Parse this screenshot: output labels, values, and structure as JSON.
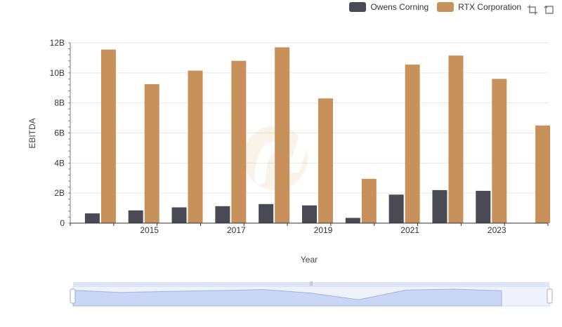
{
  "legend": [
    {
      "name": "Owens Corning",
      "color": "#4a4a55"
    },
    {
      "name": "RTX Corporation",
      "color": "#c8915c"
    }
  ],
  "toolbox": {
    "zoom_icon": "zoom-area-icon",
    "restore_icon": "restore-icon"
  },
  "chart_data": {
    "type": "bar",
    "title": "",
    "xlabel": "Year",
    "ylabel": "EBITDA",
    "ylim": [
      0,
      12000000000
    ],
    "yticks": [
      "0",
      "2B",
      "4B",
      "6B",
      "8B",
      "10B",
      "12B"
    ],
    "categories": [
      "2014",
      "2015",
      "2016",
      "2017",
      "2018",
      "2019",
      "2020",
      "2021",
      "2022",
      "2023",
      "2024"
    ],
    "xtick_labels": [
      "2015",
      "2017",
      "2019",
      "2021",
      "2023"
    ],
    "series": [
      {
        "name": "Owens Corning",
        "color": "#4a4a55",
        "values": [
          650000000,
          850000000,
          1050000000,
          1130000000,
          1270000000,
          1180000000,
          350000000,
          1900000000,
          2200000000,
          2150000000,
          null
        ]
      },
      {
        "name": "RTX Corporation",
        "color": "#c8915c",
        "values": [
          11550000000,
          9250000000,
          10150000000,
          10800000000,
          11700000000,
          8300000000,
          2950000000,
          10550000000,
          11150000000,
          9600000000,
          6500000000
        ]
      }
    ]
  }
}
